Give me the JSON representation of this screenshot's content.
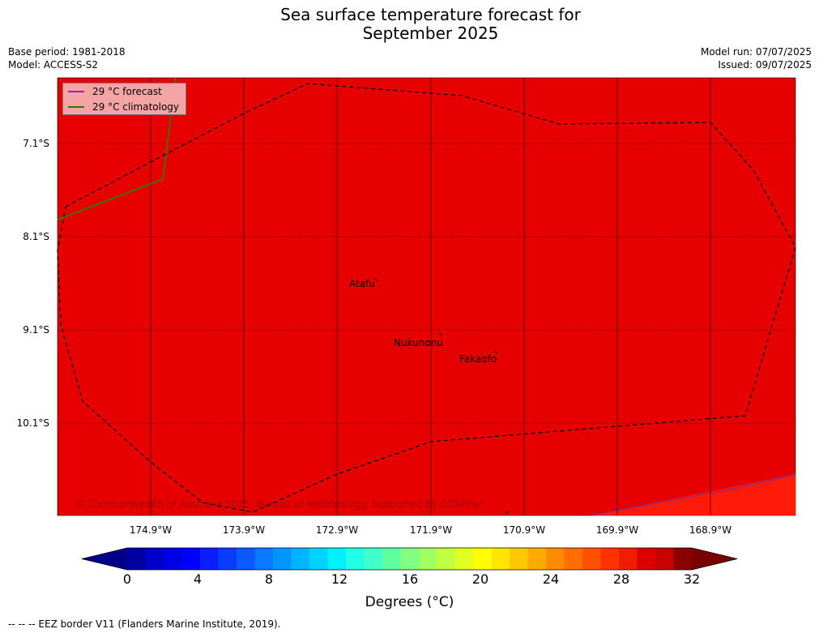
{
  "header": {
    "title_line1": "Sea surface temperature forecast for",
    "title_line2": "September 2025",
    "base_period": "Base period: 1981-2018",
    "model": "Model: ACCESS-S2",
    "model_run": "Model run: 07/07/2025",
    "issued": "Issued: 09/07/2025"
  },
  "map": {
    "lat_labels": [
      "7.1°S",
      "8.1°S",
      "9.1°S",
      "10.1°S"
    ],
    "lon_labels": [
      "174.9°W",
      "173.9°W",
      "172.9°W",
      "171.9°W",
      "170.9°W",
      "169.9°W",
      "168.9°W"
    ],
    "places": [
      "Atafu",
      "Nukunonu",
      "Fakaofo"
    ],
    "copyright": "© Commonwealth of Australia 2025, Bureau of Meteorology. Supported by COSPPac",
    "fill_color": "#e60000",
    "warm_patch_color": "#ff1a0a",
    "border_style": "dashed"
  },
  "legend": {
    "forecast_label": "29 °C  forecast",
    "forecast_color": "#a020a0",
    "climatology_label": "29 °C  climatology",
    "climatology_color": "#2e7d00"
  },
  "colorbar": {
    "ticks": [
      "0",
      "4",
      "8",
      "12",
      "16",
      "20",
      "24",
      "28",
      "32"
    ],
    "label": "Degrees (°C)",
    "colors": [
      "#0000a0",
      "#0000c8",
      "#0000e6",
      "#0000ff",
      "#0a1eff",
      "#0a3cff",
      "#0a5aff",
      "#0a78ff",
      "#0096ff",
      "#00b4ff",
      "#00d2ff",
      "#00f0ff",
      "#20ffe6",
      "#40ffc8",
      "#60ffa0",
      "#80ff80",
      "#a0ff60",
      "#c0ff40",
      "#e0ff20",
      "#ffff00",
      "#ffe600",
      "#ffc800",
      "#ffaa00",
      "#ff8c00",
      "#ff6e00",
      "#ff5000",
      "#ff3200",
      "#f01e00",
      "#dc0000",
      "#c80000",
      "#8b0000"
    ],
    "low_extend_color": "#00008b",
    "high_extend_color": "#7a0000"
  },
  "footer": {
    "note": "--  --  -- EEZ border V11 (Flanders Marine Institute, 2019)."
  }
}
